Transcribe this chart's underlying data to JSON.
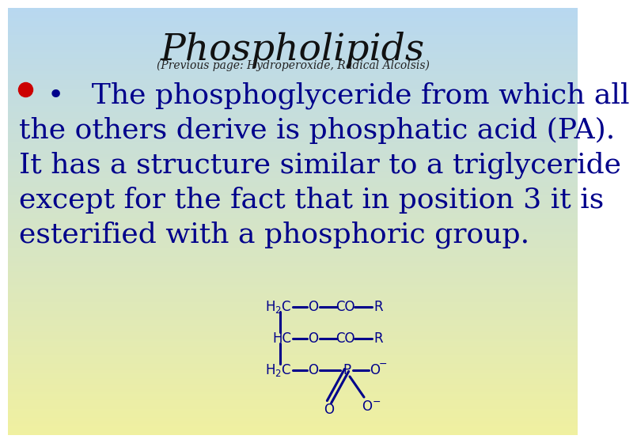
{
  "title": "Phospholipids",
  "subtitle": "(Previous page: Hydroperoxide, Radical Alcolsis)",
  "bg_top_color": "#b8d8f0",
  "bg_bottom_color": "#f0f0a0",
  "bullet_color": "#cc0000",
  "text_color": "#00008B",
  "chem_color": "#00008B",
  "body_lines": [
    "•   The phosphoglyceride from which all",
    "the others derive is phosphatic acid (PA).",
    "It has a structure similar to a triglyceride",
    "except for the fact that in position 3 it is",
    "esterified with a phosphoric group."
  ],
  "title_fontsize": 34,
  "subtitle_fontsize": 10,
  "body_fontsize": 26
}
